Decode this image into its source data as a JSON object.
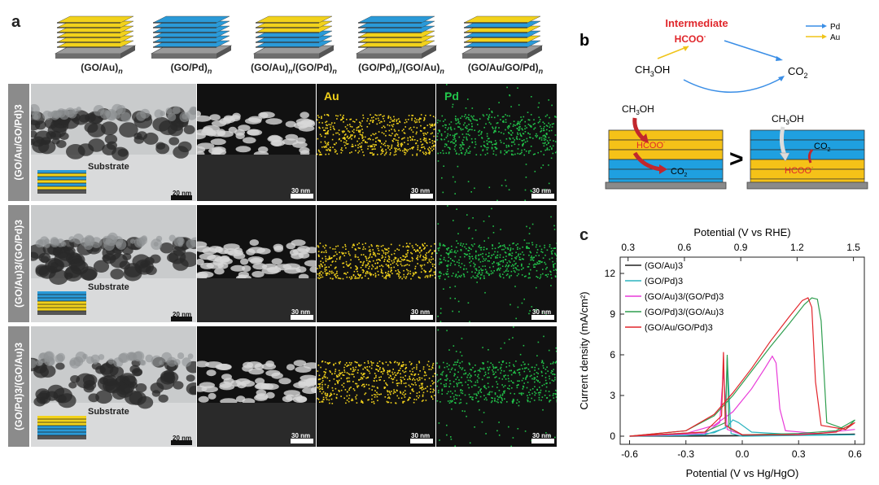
{
  "panel_a": {
    "letter": "a",
    "schematic_labels": [
      {
        "base": "(GO/Au)",
        "sub": "n"
      },
      {
        "base": "(GO/Pd)",
        "sub": "n"
      },
      {
        "base": "(GO/Au)",
        "sub": "n",
        "base2": "/(GO/Pd)",
        "sub2": "n"
      },
      {
        "base": "(GO/Pd)",
        "sub": "n",
        "base2": "/(GO/Au)",
        "sub2": "n"
      },
      {
        "base": "(GO/Au/GO/Pd)",
        "sub": "n"
      }
    ],
    "rows": [
      {
        "side_label": "(GO/Au/GO/Pd)3",
        "substrate": "Substrate"
      },
      {
        "side_label": "(GO/Au)3/(GO/Pd)3",
        "substrate": "Substrate"
      },
      {
        "side_label": "(GO/Pd)3/(GO/Au)3",
        "substrate": "Substrate"
      }
    ],
    "scale_20": "20 nm",
    "scale_30": "30 nm",
    "map_au": "Au",
    "map_pd": "Pd",
    "colors": {
      "au": "#f2d21b",
      "pd": "#22c24a",
      "blue": "#2a9ad8"
    }
  },
  "panel_b": {
    "letter": "b",
    "intermediate": "Intermediate",
    "hcoo": "HCOO",
    "hcoo_sup": "-",
    "ch3oh": "CH3OH",
    "co2": "CO2",
    "legend_pd": "Pd",
    "legend_au": "Au",
    "greater": ">",
    "colors": {
      "pd_arrow": "#3a8ee6",
      "au_arrow": "#f0c419",
      "red": "#e0262b"
    }
  },
  "chart_data": {
    "type": "line",
    "letter": "c",
    "xlabel_bottom": "Potential (V vs Hg/HgO)",
    "xlabel_top": "Potential (V vs RHE)",
    "ylabel": "Current density (mA/cm²)",
    "xlim": [
      -0.65,
      0.65
    ],
    "ylim": [
      -0.6,
      13.2
    ],
    "xticks": [
      -0.6,
      -0.3,
      0.0,
      0.3,
      0.6
    ],
    "xtick_labels": [
      "-0.6",
      "-0.3",
      "0.0",
      "0.3",
      "0.6"
    ],
    "yticks": [
      0,
      3,
      6,
      9,
      12
    ],
    "ytick_labels": [
      "0",
      "3",
      "6",
      "9",
      "12"
    ],
    "top_ticks": [
      0.3,
      0.6,
      0.9,
      1.2,
      1.5
    ],
    "top_tick_labels": [
      "0.3",
      "0.6",
      "0.9",
      "1.2",
      "1.5"
    ],
    "top_offset": 0.908,
    "legend_position": "top-left",
    "series": [
      {
        "name": "(GO/Au)3",
        "color": "#222222",
        "forward": [
          [
            -0.6,
            0.0
          ],
          [
            -0.3,
            0.05
          ],
          [
            0.0,
            0.05
          ],
          [
            0.3,
            0.12
          ],
          [
            0.6,
            0.15
          ]
        ],
        "backward": [
          [
            0.6,
            0.15
          ],
          [
            0.3,
            0.08
          ],
          [
            0.0,
            0.02
          ],
          [
            -0.3,
            0.0
          ],
          [
            -0.6,
            0.0
          ]
        ]
      },
      {
        "name": "(GO/Pd)3",
        "color": "#2bb3bf",
        "forward": [
          [
            -0.6,
            0.0
          ],
          [
            -0.3,
            0.05
          ],
          [
            -0.15,
            0.25
          ],
          [
            -0.08,
            0.7
          ],
          [
            -0.05,
            1.2
          ],
          [
            -0.02,
            1.0
          ],
          [
            0.05,
            0.3
          ],
          [
            0.3,
            0.1
          ],
          [
            0.6,
            0.1
          ]
        ],
        "backward": [
          [
            0.6,
            0.1
          ],
          [
            0.3,
            0.05
          ],
          [
            0.0,
            0.0
          ],
          [
            -0.06,
            0.2
          ],
          [
            -0.08,
            5.8
          ],
          [
            -0.09,
            0.6
          ],
          [
            -0.2,
            0.1
          ],
          [
            -0.6,
            0.0
          ]
        ]
      },
      {
        "name": "(GO/Au)3/(GO/Pd)3",
        "color": "#e83ad8",
        "forward": [
          [
            -0.6,
            0.0
          ],
          [
            -0.3,
            0.2
          ],
          [
            -0.15,
            0.8
          ],
          [
            -0.05,
            1.8
          ],
          [
            0.05,
            3.5
          ],
          [
            0.12,
            5.0
          ],
          [
            0.16,
            5.9
          ],
          [
            0.18,
            5.4
          ],
          [
            0.2,
            2.0
          ],
          [
            0.23,
            0.4
          ],
          [
            0.4,
            0.2
          ],
          [
            0.6,
            0.5
          ]
        ],
        "backward": [
          [
            0.6,
            0.5
          ],
          [
            0.4,
            0.2
          ],
          [
            0.2,
            0.1
          ],
          [
            0.0,
            0.1
          ],
          [
            -0.08,
            0.5
          ],
          [
            -0.1,
            4.8
          ],
          [
            -0.12,
            1.0
          ],
          [
            -0.2,
            0.2
          ],
          [
            -0.6,
            0.0
          ]
        ]
      },
      {
        "name": "(GO/Pd)3/(GO/Au)3",
        "color": "#2f9e4f",
        "forward": [
          [
            -0.6,
            0.0
          ],
          [
            -0.3,
            0.4
          ],
          [
            -0.15,
            1.5
          ],
          [
            -0.05,
            3.0
          ],
          [
            0.05,
            4.8
          ],
          [
            0.15,
            6.6
          ],
          [
            0.25,
            8.3
          ],
          [
            0.33,
            9.7
          ],
          [
            0.37,
            10.2
          ],
          [
            0.4,
            10.1
          ],
          [
            0.42,
            8.5
          ],
          [
            0.45,
            1.0
          ],
          [
            0.55,
            0.5
          ],
          [
            0.6,
            1.2
          ]
        ],
        "backward": [
          [
            0.6,
            1.2
          ],
          [
            0.5,
            0.4
          ],
          [
            0.3,
            0.2
          ],
          [
            0.0,
            0.1
          ],
          [
            -0.07,
            0.6
          ],
          [
            -0.08,
            6.0
          ],
          [
            -0.09,
            1.0
          ],
          [
            -0.2,
            0.3
          ],
          [
            -0.6,
            0.0
          ]
        ]
      },
      {
        "name": "(GO/Au/GO/Pd)3",
        "color": "#e2252b",
        "forward": [
          [
            -0.6,
            0.0
          ],
          [
            -0.3,
            0.4
          ],
          [
            -0.15,
            1.6
          ],
          [
            -0.05,
            3.2
          ],
          [
            0.05,
            5.0
          ],
          [
            0.15,
            7.0
          ],
          [
            0.25,
            8.8
          ],
          [
            0.32,
            10.0
          ],
          [
            0.35,
            10.2
          ],
          [
            0.37,
            9.5
          ],
          [
            0.39,
            4.0
          ],
          [
            0.42,
            0.8
          ],
          [
            0.55,
            0.5
          ],
          [
            0.6,
            1.0
          ]
        ],
        "backward": [
          [
            0.6,
            1.0
          ],
          [
            0.5,
            0.3
          ],
          [
            0.3,
            0.1
          ],
          [
            0.0,
            0.1
          ],
          [
            -0.09,
            0.8
          ],
          [
            -0.1,
            6.2
          ],
          [
            -0.11,
            1.5
          ],
          [
            -0.2,
            0.3
          ],
          [
            -0.6,
            0.0
          ]
        ]
      }
    ]
  }
}
